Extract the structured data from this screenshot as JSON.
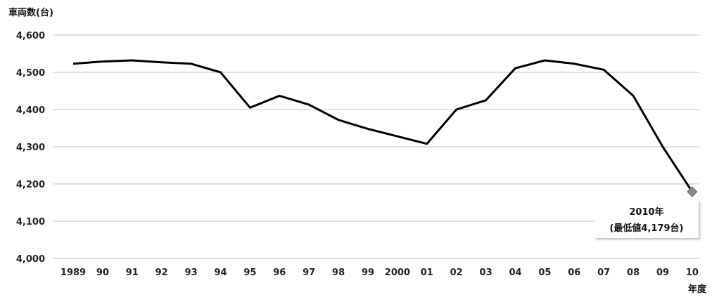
{
  "chart_data": {
    "type": "line",
    "ylabel": "車両数(台)",
    "xlabel": "年度",
    "ylim": [
      4000,
      4600
    ],
    "yticks": [
      "4,000",
      "4,100",
      "4,200",
      "4,300",
      "4,400",
      "4,500",
      "4,600"
    ],
    "ytick_values": [
      4000,
      4100,
      4200,
      4300,
      4400,
      4500,
      4600
    ],
    "categories": [
      "1989",
      "90",
      "91",
      "92",
      "93",
      "94",
      "95",
      "96",
      "97",
      "98",
      "99",
      "2000",
      "01",
      "02",
      "03",
      "04",
      "05",
      "06",
      "07",
      "08",
      "09",
      "10"
    ],
    "values": [
      4523,
      4529,
      4532,
      4527,
      4523,
      4500,
      4405,
      4437,
      4413,
      4372,
      4348,
      4328,
      4308,
      4400,
      4425,
      4511,
      4532,
      4523,
      4507,
      4437,
      4300,
      4179
    ],
    "grid": true,
    "line_color": "#000000",
    "marker_color": "#8a8a8a",
    "annotation": {
      "line1": "2010年",
      "line2": "(最低値4,179台)",
      "point_index": 21
    }
  }
}
